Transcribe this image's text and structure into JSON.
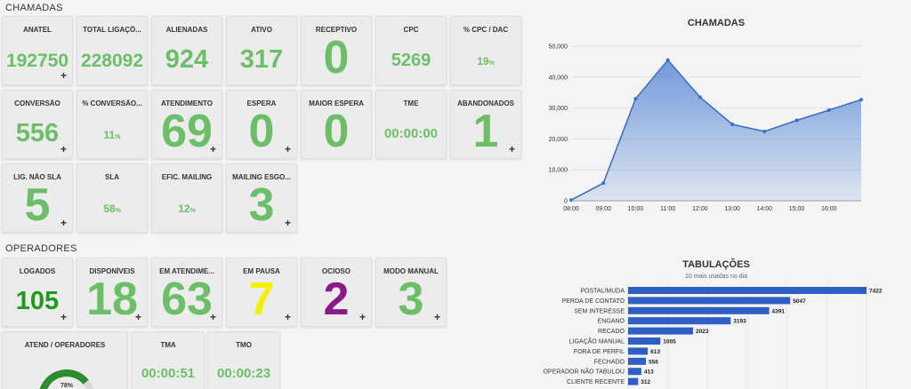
{
  "sections": {
    "chamadas": "CHAMADAS",
    "operadores": "OPERADORES"
  },
  "colors": {
    "green": "#6cbf68",
    "dark_green": "#1f9a1a",
    "yellow": "#f5f000",
    "purple": "#8a1a8a",
    "bar": "#2f5fc4",
    "area": "#5a8ad6"
  },
  "chamadas_tiles": [
    {
      "label": "ANATEL",
      "value": "192750",
      "size": "big",
      "plus": true
    },
    {
      "label": "TOTAL LIGAÇÕ...",
      "value": "228092",
      "size": "big",
      "plus": false
    },
    {
      "label": "ALIENADAS",
      "value": "924",
      "size": "big2",
      "plus": false
    },
    {
      "label": "ATIVO",
      "value": "317",
      "size": "big2",
      "plus": false
    },
    {
      "label": "RECEPTIVO",
      "value": "0",
      "size": "huge",
      "plus": false
    },
    {
      "label": "CPC",
      "value": "5269",
      "size": "mid",
      "plus": false
    },
    {
      "label": "% CPC / DAC",
      "value": "19",
      "unit": "%",
      "size": "pct",
      "plus": false
    },
    {
      "label": "CONVERSÃO",
      "value": "556",
      "size": "big2",
      "plus": true
    },
    {
      "label": "% CONVERSÃO...",
      "value": "11",
      "unit": "%",
      "size": "pct",
      "plus": false
    },
    {
      "label": "ATENDIMENTO",
      "value": "69",
      "size": "huge",
      "plus": true
    },
    {
      "label": "ESPERA",
      "value": "0",
      "size": "huge",
      "plus": true
    },
    {
      "label": "MAIOR ESPERA",
      "value": "0",
      "size": "huge",
      "plus": false
    },
    {
      "label": "TME",
      "value": "00:00:00",
      "size": "time",
      "plus": false
    },
    {
      "label": "ABANDONADOS",
      "value": "1",
      "size": "huge",
      "plus": true
    },
    {
      "label": "LIG. NÃO SLA",
      "value": "5",
      "size": "huge",
      "plus": true
    },
    {
      "label": "SLA",
      "value": "58",
      "unit": "%",
      "size": "pct",
      "plus": false
    },
    {
      "label": "EFIC. MAILING",
      "value": "12",
      "unit": "%",
      "size": "pct",
      "plus": false
    },
    {
      "label": "MAILING ESGO...",
      "value": "3",
      "size": "huge",
      "plus": true
    }
  ],
  "operadores_tiles": [
    {
      "label": "LOGADOS",
      "value": "105",
      "size": "big2",
      "color": "dark_green",
      "plus": true
    },
    {
      "label": "DISPONÍVEIS",
      "value": "18",
      "size": "huge",
      "plus": true
    },
    {
      "label": "EM ATENDIME...",
      "value": "63",
      "size": "huge",
      "plus": true
    },
    {
      "label": "EM PAUSA",
      "value": "7",
      "size": "huge",
      "color": "yellow",
      "plus": true
    },
    {
      "label": "OCIOSO",
      "value": "2",
      "size": "huge",
      "color": "purple",
      "plus": true
    },
    {
      "label": "MODO MANUAL",
      "value": "3",
      "size": "huge",
      "plus": true
    }
  ],
  "gauge": {
    "label": "ATEND / OPERADORES",
    "value": "78%",
    "fraction": 0.78
  },
  "tma": {
    "label": "TMA",
    "value": "00:00:51"
  },
  "tmo": {
    "label": "TMO",
    "value": "00:00:23"
  },
  "chart_data": [
    {
      "type": "area",
      "title": "CHAMADAS",
      "x": [
        "08:00",
        "09:00",
        "10:00",
        "11:00",
        "12:00",
        "13:00",
        "14:00",
        "15:00",
        "16:00",
        ""
      ],
      "values": [
        200,
        5700,
        33000,
        45500,
        33500,
        24700,
        22400,
        26000,
        29300,
        32700
      ],
      "y_ticks": [
        "0",
        "10,000",
        "20,000",
        "30,000",
        "40,000",
        "50,000"
      ],
      "ylim": [
        0,
        50000
      ],
      "grid": true
    },
    {
      "type": "bar",
      "title": "TABULAÇÕES",
      "subtitle": "10 mais usadas no dia",
      "categories": [
        "POSTAL/MUDA",
        "PERDA DE CONTATO",
        "SEM INTERESSE",
        "ENGANO",
        "RECADO",
        "LIGAÇÃO MANUAL",
        "FORA DE PERFIL",
        "FECHADO",
        "OPERADOR NÃO TABULOU",
        "CLIENTE RECENTE"
      ],
      "values": [
        7422,
        5047,
        4391,
        3193,
        2023,
        1005,
        613,
        556,
        413,
        312
      ],
      "orientation": "horizontal"
    }
  ]
}
